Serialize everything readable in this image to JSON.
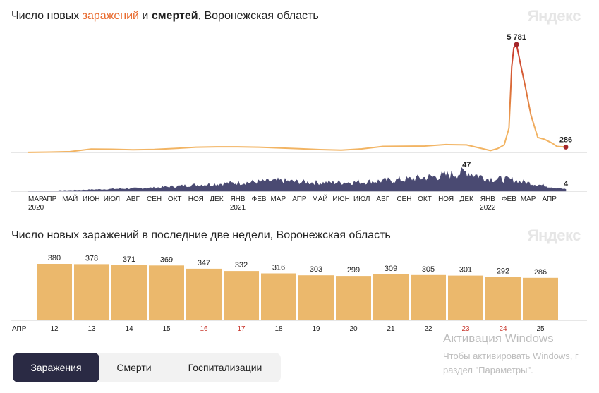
{
  "header": {
    "title_part1": "Число новых ",
    "title_infections": "заражений",
    "title_part2": " и ",
    "title_deaths": "смертей",
    "title_part3": ", Воронежская область",
    "brand": "Яндекс"
  },
  "chart_data": [
    {
      "type": "line",
      "name": "cases",
      "title": "Число новых заражений и смертей, Воронежская область",
      "x": [
        "2020-03",
        "2020-04",
        "2020-05",
        "2020-06",
        "2020-07",
        "2020-08",
        "2020-09",
        "2020-10",
        "2020-11",
        "2020-12",
        "2021-01",
        "2021-02",
        "2021-03",
        "2021-04",
        "2021-05",
        "2021-06",
        "2021-07",
        "2021-08",
        "2021-09",
        "2021-10",
        "2021-11",
        "2021-12",
        "2022-01-05",
        "2022-01-15",
        "2022-01-25",
        "2022-02-01",
        "2022-02-05",
        "2022-02-08",
        "2022-02-12",
        "2022-02-18",
        "2022-02-25",
        "2022-03-05",
        "2022-03-15",
        "2022-03-25",
        "2022-04-05",
        "2022-04-12",
        "2022-04-25"
      ],
      "y": [
        5,
        20,
        40,
        180,
        170,
        140,
        160,
        210,
        280,
        300,
        300,
        280,
        240,
        200,
        150,
        120,
        190,
        320,
        330,
        340,
        420,
        400,
        100,
        200,
        400,
        1300,
        4600,
        5600,
        5781,
        4700,
        3500,
        2000,
        800,
        700,
        500,
        320,
        286
      ],
      "peak_label": "5 781",
      "last_label": "286",
      "ylim": [
        0,
        6000
      ],
      "color_low": "#f2b463",
      "color_high": "#c8372d"
    },
    {
      "type": "area",
      "name": "deaths",
      "x": [
        "2020-03",
        "2020-05",
        "2020-07",
        "2020-09",
        "2020-11",
        "2021-01",
        "2021-03",
        "2021-05",
        "2021-07",
        "2021-09",
        "2021-11",
        "2021-12",
        "2022-01",
        "2022-02",
        "2022-03",
        "2022-04-25"
      ],
      "y": [
        0,
        2,
        5,
        8,
        15,
        20,
        25,
        20,
        22,
        28,
        38,
        47,
        30,
        28,
        20,
        4
      ],
      "peak_label": "47",
      "last_label": "4",
      "color": "#4a4a72",
      "ylim": [
        0,
        50
      ],
      "xticks": [
        {
          "label": "МАР",
          "sub": "2020"
        },
        {
          "label": "АПР",
          "sub": ""
        },
        {
          "label": "МАЙ",
          "sub": ""
        },
        {
          "label": "ИЮН",
          "sub": ""
        },
        {
          "label": "ИЮЛ",
          "sub": ""
        },
        {
          "label": "АВГ",
          "sub": ""
        },
        {
          "label": "СЕН",
          "sub": ""
        },
        {
          "label": "ОКТ",
          "sub": ""
        },
        {
          "label": "НОЯ",
          "sub": ""
        },
        {
          "label": "ДЕК",
          "sub": ""
        },
        {
          "label": "ЯНВ",
          "sub": "2021"
        },
        {
          "label": "ФЕВ",
          "sub": ""
        },
        {
          "label": "МАР",
          "sub": ""
        },
        {
          "label": "АПР",
          "sub": ""
        },
        {
          "label": "МАЙ",
          "sub": ""
        },
        {
          "label": "ИЮН",
          "sub": ""
        },
        {
          "label": "ИЮЛ",
          "sub": ""
        },
        {
          "label": "АВГ",
          "sub": ""
        },
        {
          "label": "СЕН",
          "sub": ""
        },
        {
          "label": "ОКТ",
          "sub": ""
        },
        {
          "label": "НОЯ",
          "sub": ""
        },
        {
          "label": "ДЕК",
          "sub": ""
        },
        {
          "label": "ЯНВ",
          "sub": "2022"
        },
        {
          "label": "ФЕВ",
          "sub": ""
        },
        {
          "label": "МАР",
          "sub": ""
        },
        {
          "label": "АПР",
          "sub": ""
        }
      ]
    },
    {
      "type": "bar",
      "name": "two-weeks",
      "title": "Число новых заражений в последние две недели, Воронежская область",
      "month_label": "АПР",
      "categories": [
        "12",
        "13",
        "14",
        "15",
        "16",
        "17",
        "18",
        "19",
        "20",
        "21",
        "22",
        "23",
        "24",
        "25"
      ],
      "values": [
        380,
        378,
        371,
        369,
        347,
        332,
        316,
        303,
        299,
        309,
        305,
        301,
        292,
        286
      ],
      "highlight_days": [
        "16",
        "17",
        "23",
        "24"
      ],
      "ylim": [
        0,
        400
      ],
      "bar_color": "#ebb86c",
      "highlight_color": "#c8372d"
    }
  ],
  "bars_header": {
    "title": "Число новых заражений в последние две недели, Воронежская область",
    "brand": "Яндекс"
  },
  "tabs": [
    {
      "label": "Заражения",
      "active": true
    },
    {
      "label": "Смерти",
      "active": false
    },
    {
      "label": "Госпитализации",
      "active": false
    }
  ],
  "watermark": {
    "line1": "Активация Windows",
    "line2": "Чтобы активировать Windows, г",
    "line3": "раздел \"Параметры\"."
  }
}
